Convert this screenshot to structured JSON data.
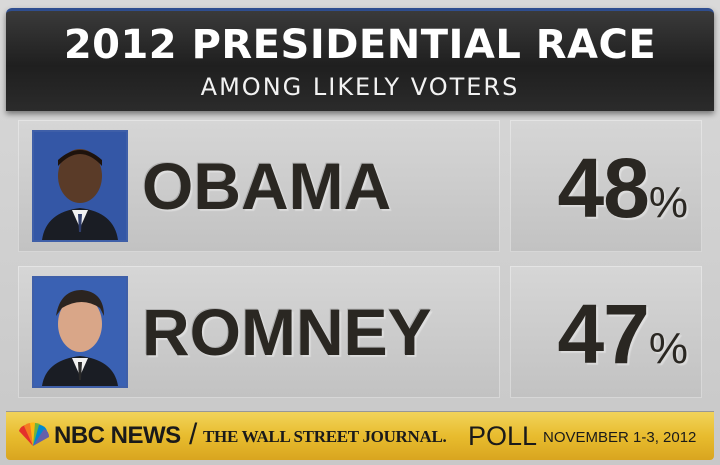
{
  "header": {
    "title": "2012 PRESIDENTIAL RACE",
    "subtitle": "AMONG LIKELY VOTERS"
  },
  "candidates": [
    {
      "name": "OBAMA",
      "percent": "48",
      "percent_sign": "%"
    },
    {
      "name": "ROMNEY",
      "percent": "47",
      "percent_sign": "%"
    }
  ],
  "footer": {
    "nbc": "NBC NEWS",
    "separator": "/",
    "wsj": "THE WALL STREET JOURNAL.",
    "poll": "POLL",
    "date": "NOVEMBER 1-3, 2012"
  },
  "colors": {
    "header_bg": "#222222",
    "header_accent": "#2f4e8f",
    "footer_gold": "#e8bc2e",
    "cell_gray": "#cccccc",
    "text_dark": "#2a2722"
  },
  "icons": {
    "logo": "nbc-peacock-icon"
  }
}
